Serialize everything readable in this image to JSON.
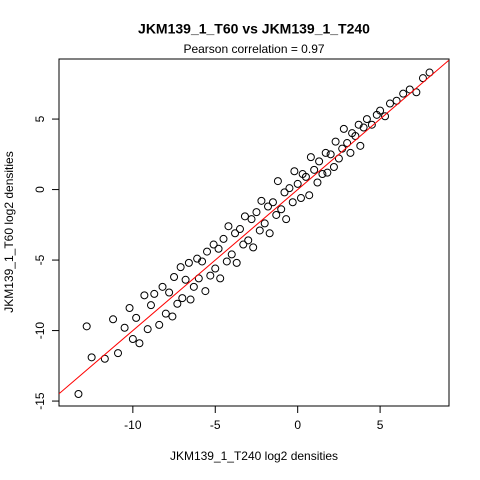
{
  "chart_data": {
    "type": "scatter",
    "title": "JKM139_1_T60 vs JKM139_1_T240",
    "subtitle": "Pearson correlation =  0.97",
    "xlabel": "JKM139_1_T240 log2 densities",
    "ylabel": "JKM139_1_T60 log2 densities",
    "xlim": [
      -14.48,
      9.18
    ],
    "ylim": [
      -15.35,
      9.26
    ],
    "xticks": [
      -10,
      -5,
      0,
      5
    ],
    "yticks": [
      -15,
      -10,
      -5,
      0,
      5
    ],
    "marker_color": "#000000",
    "reference_line": {
      "intercept": 0,
      "slope": 1,
      "color": "#ff0000"
    },
    "x": [
      -13.3,
      -12.8,
      -12.5,
      -11.7,
      -11.2,
      -10.9,
      -10.5,
      -10.2,
      -10,
      -9.8,
      -9.6,
      -9.3,
      -9.1,
      -8.9,
      -8.7,
      -8.4,
      -8.2,
      -8,
      -7.8,
      -7.6,
      -7.5,
      -7.3,
      -7.1,
      -7,
      -6.8,
      -6.6,
      -6.5,
      -6.3,
      -6.1,
      -6,
      -5.8,
      -5.6,
      -5.5,
      -5.3,
      -5.1,
      -5,
      -4.8,
      -4.7,
      -4.5,
      -4.3,
      -4.2,
      -4,
      -3.8,
      -3.7,
      -3.5,
      -3.3,
      -3.2,
      -3,
      -2.8,
      -2.7,
      -2.5,
      -2.3,
      -2.2,
      -2,
      -1.8,
      -1.7,
      -1.5,
      -1.3,
      -1.2,
      -1,
      -0.8,
      -0.7,
      -0.5,
      -0.3,
      -0.2,
      0,
      0.2,
      0.3,
      0.5,
      0.7,
      0.8,
      1,
      1.2,
      1.3,
      1.5,
      1.7,
      1.8,
      2,
      2.2,
      2.3,
      2.5,
      2.7,
      2.8,
      3,
      3.2,
      3.3,
      3.5,
      3.7,
      3.8,
      4,
      4.2,
      4.5,
      4.8,
      5,
      5.3,
      5.6,
      6,
      6.4,
      6.8,
      7.2,
      7.6,
      8
    ],
    "y": [
      -14.5,
      -9.7,
      -11.9,
      -12,
      -9.2,
      -11.6,
      -9.8,
      -8.4,
      -10.6,
      -9.1,
      -10.9,
      -7.5,
      -9.9,
      -8.2,
      -7.4,
      -9.6,
      -6.9,
      -8.8,
      -7.3,
      -9,
      -6.2,
      -8.1,
      -5.5,
      -7.7,
      -6.4,
      -5.2,
      -7.8,
      -6.9,
      -4.9,
      -6.3,
      -5.1,
      -7.2,
      -4.4,
      -6.1,
      -3.9,
      -5.6,
      -4.2,
      -6.3,
      -3.5,
      -5.1,
      -2.6,
      -4.6,
      -3.1,
      -5.2,
      -2.8,
      -3.9,
      -1.9,
      -3.6,
      -2.1,
      -4.1,
      -1.6,
      -2.9,
      -0.8,
      -2.4,
      -1.2,
      -3.1,
      -0.9,
      -1.8,
      0.6,
      -1.4,
      -0.2,
      -2.1,
      0.1,
      -0.9,
      1.3,
      0.4,
      -0.6,
      1.1,
      0.9,
      -0.4,
      2.3,
      1.4,
      0.5,
      2.0,
      1.1,
      2.6,
      1.2,
      2.5,
      1.6,
      3.4,
      2.2,
      2.9,
      4.3,
      3.3,
      2.6,
      4.0,
      3.8,
      4.6,
      3.1,
      4.4,
      5.0,
      4.6,
      5.3,
      5.6,
      5.2,
      6.1,
      6.3,
      6.8,
      7.1,
      6.9,
      7.9,
      8.3
    ]
  }
}
